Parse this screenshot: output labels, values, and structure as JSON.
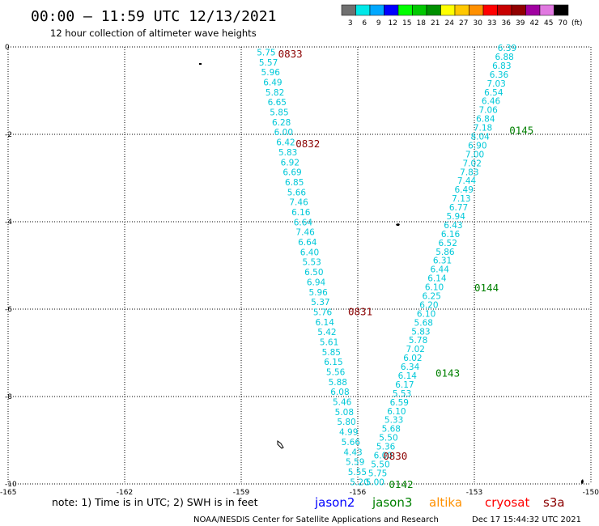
{
  "header": {
    "title": "00:00 — 11:59 UTC 12/13/2021",
    "subtitle": "12 hour collection of altimeter wave heights"
  },
  "legend": {
    "unit_label": "(ft)",
    "bins": [
      {
        "label": "3",
        "color": "#707070"
      },
      {
        "label": "6",
        "color": "#00e8e8"
      },
      {
        "label": "9",
        "color": "#00a8ff"
      },
      {
        "label": "12",
        "color": "#0000ff"
      },
      {
        "label": "15",
        "color": "#00ff00"
      },
      {
        "label": "18",
        "color": "#00c800"
      },
      {
        "label": "21",
        "color": "#009000"
      },
      {
        "label": "24",
        "color": "#ffff00"
      },
      {
        "label": "27",
        "color": "#ffc800"
      },
      {
        "label": "30",
        "color": "#ff9000"
      },
      {
        "label": "33",
        "color": "#ff0000"
      },
      {
        "label": "36",
        "color": "#c80000"
      },
      {
        "label": "39",
        "color": "#900000"
      },
      {
        "label": "42",
        "color": "#a000a0"
      },
      {
        "label": "45",
        "color": "#e078e0"
      },
      {
        "label": "70",
        "color": "#000000"
      }
    ]
  },
  "chart_data": {
    "type": "scatter",
    "xlim": [
      -165,
      -150
    ],
    "ylim": [
      -10,
      0
    ],
    "grid": true,
    "x_ticks": [
      "-165",
      "-162",
      "-159",
      "-156",
      "-153",
      "-150"
    ],
    "y_ticks": [
      "0",
      "-2",
      "-4",
      "-6",
      "-8",
      "-10"
    ],
    "value_color": "#00c8d8",
    "tracks": [
      {
        "id": "west",
        "start": [
          -158.6,
          -0.12
        ],
        "end": [
          -156.2,
          -9.95
        ],
        "values": [
          "5.75",
          "5.57",
          "5.96",
          "6.49",
          "5.82",
          "6.65",
          "5.85",
          "6.28",
          "6.00",
          "6.42",
          "5.83",
          "6.92",
          "6.69",
          "6.85",
          "5.66",
          "7.46",
          "6.16",
          "6.64",
          "7.46",
          "6.64",
          "6.40",
          "5.53",
          "6.50",
          "6.94",
          "5.96",
          "5.37",
          "5.76",
          "6.14",
          "5.42",
          "5.61",
          "5.85",
          "6.15",
          "5.56",
          "5.88",
          "6.08",
          "5.46",
          "5.08",
          "5.80",
          "4.99",
          "5.66",
          "4.43",
          "5.59",
          "5.55",
          "5.20"
        ]
      },
      {
        "id": "east",
        "start": [
          -152.4,
          -0.02
        ],
        "end": [
          -155.8,
          -9.95
        ],
        "values": [
          "6.39",
          "6.88",
          "6.83",
          "6.36",
          "7.03",
          "6.54",
          "6.46",
          "7.06",
          "6.84",
          "7.18",
          "8.04",
          "6.90",
          "7.00",
          "7.02",
          "7.83",
          "7.44",
          "6.49",
          "7.13",
          "6.77",
          "5.94",
          "6.43",
          "6.16",
          "6.52",
          "5.86",
          "6.31",
          "6.44",
          "6.14",
          "6.10",
          "6.25",
          "6.20",
          "6.10",
          "5.68",
          "5.83",
          "5.78",
          "7.02",
          "6.02",
          "6.34",
          "6.14",
          "6.17",
          "5.53",
          "6.59",
          "6.10",
          "5.33",
          "5.68",
          "5.50",
          "5.36",
          "6.00",
          "5.50",
          "5.75",
          "5.00"
        ]
      }
    ],
    "time_labels": [
      {
        "text": "0833",
        "x": -158.05,
        "y": -0.15,
        "color": "#8b0000"
      },
      {
        "text": "0832",
        "x": -157.6,
        "y": -2.2,
        "color": "#8b0000"
      },
      {
        "text": "0831",
        "x": -156.25,
        "y": -6.05,
        "color": "#8b0000"
      },
      {
        "text": "0830",
        "x": -155.35,
        "y": -9.35,
        "color": "#8b0000"
      },
      {
        "text": "0145",
        "x": -152.1,
        "y": -1.9,
        "color": "#008000"
      },
      {
        "text": "0144",
        "x": -153.0,
        "y": -5.5,
        "color": "#008000"
      },
      {
        "text": "0143",
        "x": -154.0,
        "y": -7.45,
        "color": "#008000"
      },
      {
        "text": "0142",
        "x": -155.2,
        "y": -10.0,
        "color": "#008000"
      }
    ]
  },
  "footer": {
    "note": "note:  1) Time is in UTC;  2) SWH is in feet",
    "satellites": [
      {
        "name": "jason2",
        "color": "#0000ff"
      },
      {
        "name": "jason3",
        "color": "#008000"
      },
      {
        "name": "altika",
        "color": "#ff9000"
      },
      {
        "name": "cryosat",
        "color": "#ff0000"
      },
      {
        "name": "s3a",
        "color": "#8b0000"
      }
    ],
    "credit": "NOAA/NESDIS Center for Satellite Applications and Research",
    "timestamp": "Dec 17 15:44:32 UTC 2021"
  }
}
